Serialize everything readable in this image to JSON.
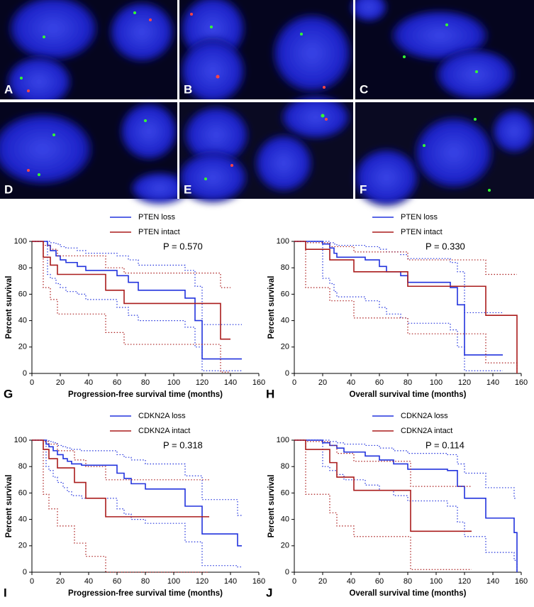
{
  "image_labels": [
    "A",
    "B",
    "C",
    "D",
    "E",
    "F"
  ],
  "chart_data": [
    {
      "type": "line",
      "step": true,
      "panel_label": "G",
      "annotation": "P = 0.570",
      "x_label": "Progression-free survival time (months)",
      "y_label": "Percent survival",
      "xlim": [
        0,
        160
      ],
      "ylim": [
        0,
        100
      ],
      "xticks": [
        0,
        20,
        40,
        60,
        80,
        100,
        120,
        140,
        160
      ],
      "yticks": [
        0,
        20,
        40,
        60,
        80,
        100
      ],
      "series": [
        {
          "name": "PTEN loss",
          "color": "#2233dd",
          "x": [
            0,
            11,
            13,
            17,
            20,
            24,
            32,
            38,
            60,
            68,
            75,
            108,
            115,
            120,
            148
          ],
          "values": [
            100,
            97,
            93,
            89,
            86,
            84,
            81,
            78,
            74,
            69,
            63,
            57,
            40,
            11,
            11
          ],
          "lower": [
            100,
            75,
            72,
            68,
            65,
            62,
            60,
            56,
            50,
            44,
            40,
            35,
            20,
            2,
            2
          ],
          "upper": [
            100,
            100,
            99,
            98,
            96,
            95,
            93,
            91,
            89,
            86,
            82,
            78,
            66,
            37,
            37
          ]
        },
        {
          "name": "PTEN intact",
          "color": "#aa1c1c",
          "x": [
            0,
            8,
            13,
            18,
            25,
            52,
            65,
            133,
            140
          ],
          "values": [
            100,
            88,
            82,
            75,
            75,
            63,
            53,
            26,
            26
          ],
          "lower": [
            100,
            65,
            56,
            45,
            45,
            31,
            22,
            1,
            1
          ],
          "upper": [
            100,
            97,
            94,
            89,
            89,
            80,
            76,
            65,
            65
          ]
        }
      ]
    },
    {
      "type": "line",
      "step": true,
      "panel_label": "H",
      "annotation": "P = 0.330",
      "x_label": "Overall survival time (months)",
      "y_label": "Percent survival",
      "xlim": [
        0,
        160
      ],
      "ylim": [
        0,
        100
      ],
      "xticks": [
        0,
        20,
        40,
        60,
        80,
        100,
        120,
        140,
        160
      ],
      "yticks": [
        0,
        20,
        40,
        60,
        80,
        100
      ],
      "series": [
        {
          "name": "PTEN loss",
          "color": "#2233dd",
          "x": [
            0,
            20,
            25,
            28,
            30,
            50,
            60,
            65,
            75,
            80,
            110,
            115,
            120,
            147
          ],
          "values": [
            100,
            98,
            95,
            91,
            88,
            86,
            81,
            77,
            74,
            69,
            65,
            52,
            14,
            14
          ],
          "lower": [
            100,
            72,
            68,
            62,
            58,
            55,
            50,
            45,
            42,
            38,
            33,
            20,
            2,
            2
          ],
          "upper": [
            100,
            100,
            99,
            98,
            97,
            96,
            94,
            92,
            90,
            87,
            84,
            77,
            46,
            46
          ]
        },
        {
          "name": "PTEN intact",
          "color": "#aa1c1c",
          "x": [
            0,
            8,
            25,
            42,
            80,
            135,
            157
          ],
          "values": [
            100,
            94,
            86,
            77,
            66,
            44,
            0
          ],
          "lower": [
            100,
            65,
            55,
            42,
            30,
            8,
            0
          ],
          "upper": [
            100,
            99,
            96,
            92,
            86,
            75,
            75
          ]
        }
      ]
    },
    {
      "type": "line",
      "step": true,
      "panel_label": "I",
      "annotation": "P = 0.318",
      "x_label": "Progression-free survival time (months)",
      "y_label": "Percent survival",
      "xlim": [
        0,
        160
      ],
      "ylim": [
        0,
        100
      ],
      "xticks": [
        0,
        20,
        40,
        60,
        80,
        100,
        120,
        140,
        160
      ],
      "yticks": [
        0,
        20,
        40,
        60,
        80,
        100
      ],
      "series": [
        {
          "name": "CDKN2A loss",
          "color": "#2233dd",
          "x": [
            0,
            10,
            12,
            15,
            18,
            22,
            25,
            28,
            35,
            60,
            65,
            70,
            80,
            108,
            120,
            145,
            148
          ],
          "values": [
            100,
            97,
            95,
            92,
            89,
            86,
            84,
            82,
            81,
            75,
            71,
            67,
            63,
            50,
            29,
            20,
            20
          ],
          "lower": [
            100,
            80,
            77,
            72,
            68,
            64,
            61,
            58,
            56,
            48,
            44,
            40,
            37,
            23,
            5,
            4,
            4
          ],
          "upper": [
            100,
            100,
            99,
            98,
            96,
            95,
            94,
            93,
            92,
            89,
            87,
            85,
            82,
            73,
            55,
            43,
            43
          ]
        },
        {
          "name": "CDKN2A intact",
          "color": "#aa1c1c",
          "x": [
            0,
            8,
            12,
            18,
            25,
            30,
            38,
            52,
            125
          ],
          "values": [
            100,
            93,
            86,
            79,
            79,
            68,
            56,
            42,
            42
          ],
          "lower": [
            100,
            59,
            48,
            35,
            35,
            22,
            12,
            0,
            0
          ],
          "upper": [
            100,
            99,
            97,
            92,
            92,
            85,
            80,
            70,
            70
          ]
        }
      ]
    },
    {
      "type": "line",
      "step": true,
      "panel_label": "J",
      "annotation": "P = 0.114",
      "x_label": "Overall survival time (months)",
      "y_label": "Percent survival",
      "xlim": [
        0,
        160
      ],
      "ylim": [
        0,
        100
      ],
      "xticks": [
        0,
        20,
        40,
        60,
        80,
        100,
        120,
        140,
        160
      ],
      "yticks": [
        0,
        20,
        40,
        60,
        80,
        100
      ],
      "series": [
        {
          "name": "CDKN2A loss",
          "color": "#2233dd",
          "x": [
            0,
            20,
            25,
            30,
            35,
            50,
            60,
            70,
            80,
            108,
            115,
            120,
            135,
            155,
            157
          ],
          "values": [
            100,
            98,
            96,
            94,
            91,
            88,
            85,
            82,
            78,
            77,
            65,
            56,
            41,
            30,
            0
          ],
          "lower": [
            100,
            80,
            77,
            74,
            70,
            66,
            62,
            58,
            54,
            50,
            38,
            27,
            15,
            9,
            0
          ],
          "upper": [
            100,
            100,
            99,
            98,
            97,
            96,
            94,
            92,
            90,
            89,
            82,
            75,
            64,
            56,
            56
          ]
        },
        {
          "name": "CDKN2A intact",
          "color": "#aa1c1c",
          "x": [
            0,
            8,
            25,
            30,
            42,
            82,
            125
          ],
          "values": [
            100,
            93,
            83,
            72,
            62,
            31,
            31
          ],
          "lower": [
            100,
            59,
            45,
            35,
            27,
            2,
            2
          ],
          "upper": [
            100,
            99,
            96,
            90,
            84,
            65,
            65
          ]
        }
      ]
    }
  ]
}
